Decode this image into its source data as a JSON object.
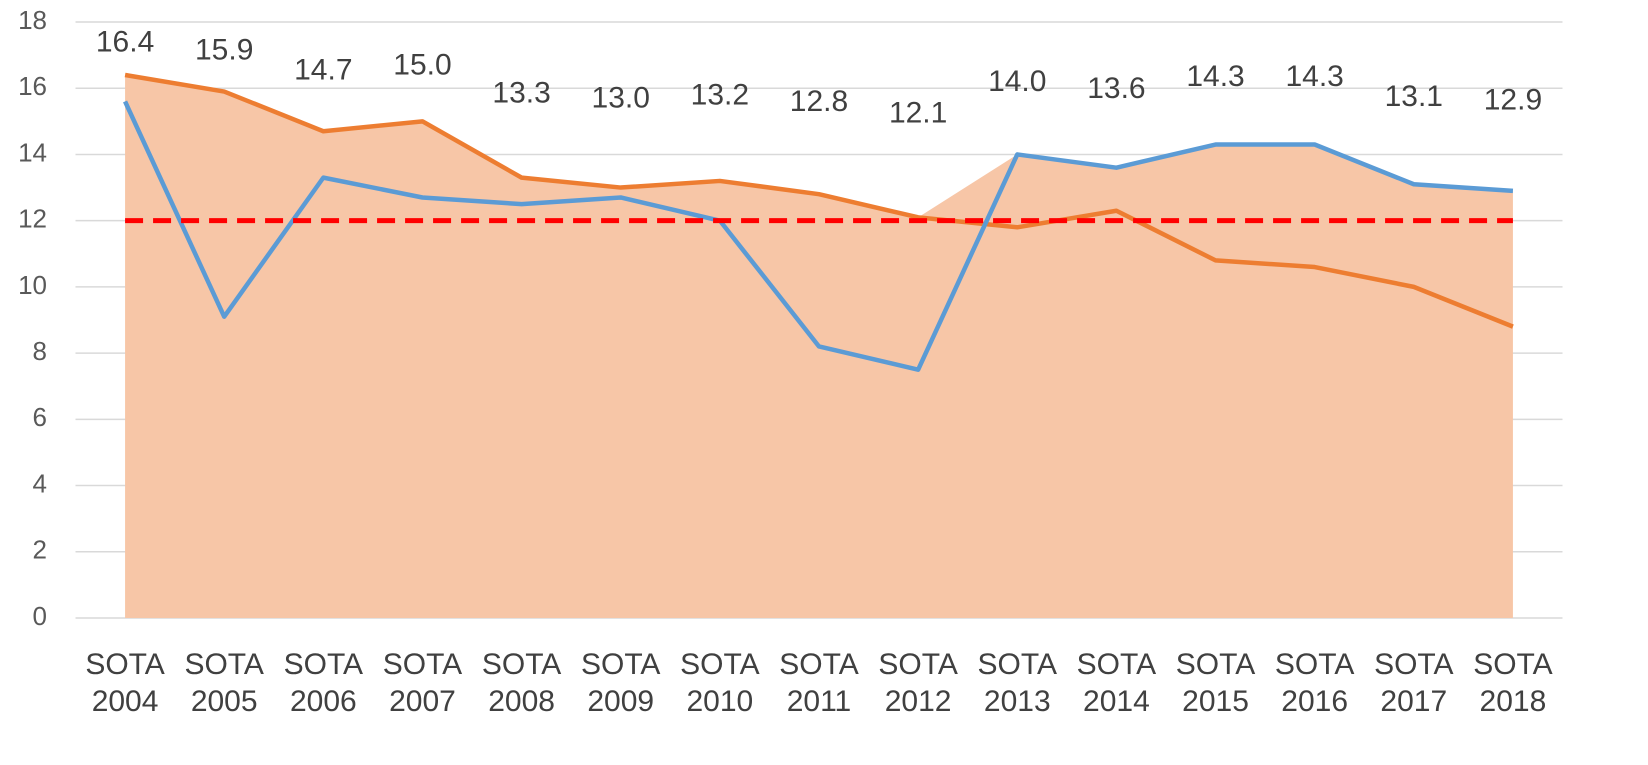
{
  "chart_data": {
    "type": "line",
    "categories": [
      "SOTA 2004",
      "SOTA 2005",
      "SOTA 2006",
      "SOTA 2007",
      "SOTA 2008",
      "SOTA 2009",
      "SOTA 2010",
      "SOTA 2011",
      "SOTA 2012",
      "SOTA 2013",
      "SOTA 2014",
      "SOTA 2015",
      "SOTA 2016",
      "SOTA 2017",
      "SOTA 2018"
    ],
    "series": [
      {
        "kind": "area",
        "color": "#f7c6a7",
        "values": [
          16.4,
          15.9,
          14.7,
          15.0,
          13.3,
          13.0,
          13.2,
          12.8,
          12.1,
          14.0,
          13.6,
          14.3,
          14.3,
          13.1,
          12.9
        ],
        "value_labels": [
          "16.4",
          "15.9",
          "14.7",
          "15.0",
          "13.3",
          "13.0",
          "13.2",
          "12.8",
          "12.1",
          "14.0",
          "13.6",
          "14.3",
          "14.3",
          "13.1",
          "12.9"
        ]
      },
      {
        "kind": "line",
        "color": "#ed7d31",
        "values": [
          16.4,
          15.9,
          14.7,
          15.0,
          13.3,
          13.0,
          13.2,
          12.8,
          12.1,
          11.8,
          12.3,
          10.8,
          10.6,
          10.0,
          8.8
        ]
      },
      {
        "kind": "line",
        "color": "#5b9bd5",
        "values": [
          15.6,
          9.1,
          13.3,
          12.7,
          12.5,
          12.7,
          12.0,
          8.2,
          7.5,
          14.0,
          13.6,
          14.3,
          14.3,
          13.1,
          12.9
        ]
      },
      {
        "kind": "dashed",
        "color": "#ff0000",
        "values": [
          12,
          12,
          12,
          12,
          12,
          12,
          12,
          12,
          12,
          12,
          12,
          12,
          12,
          12,
          12
        ]
      }
    ],
    "ylim": [
      0,
      18
    ],
    "yticks": [
      0,
      2,
      4,
      6,
      8,
      10,
      12,
      14,
      16,
      18
    ],
    "grid": true
  }
}
